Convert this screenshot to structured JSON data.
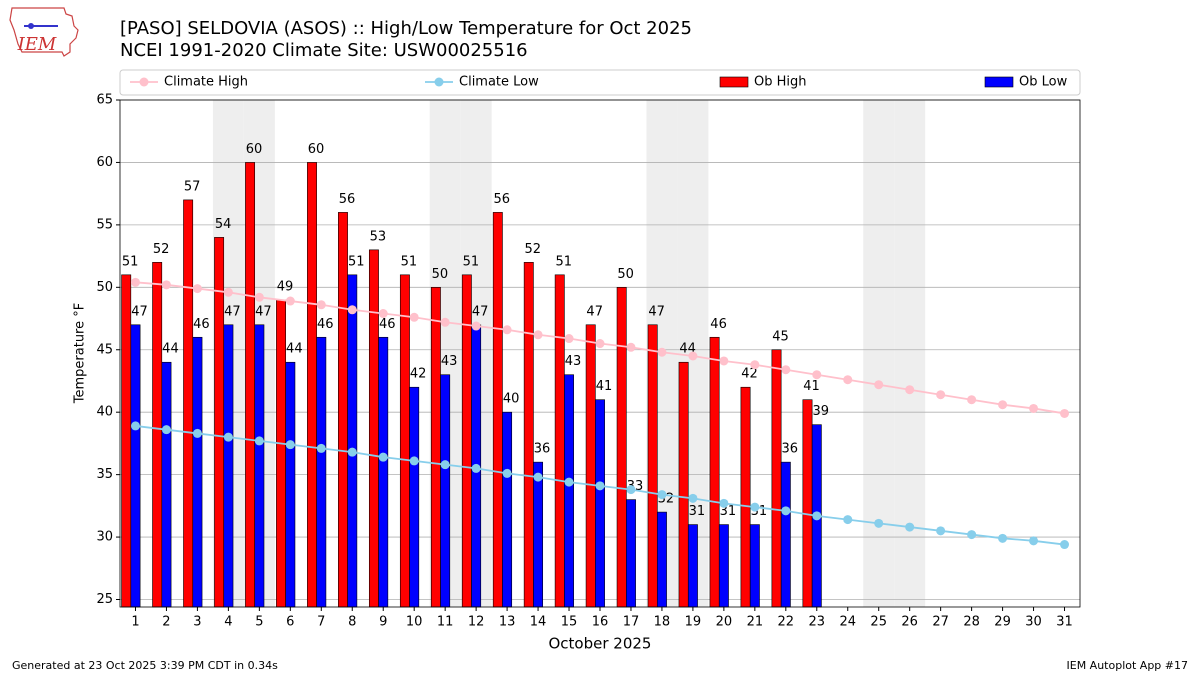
{
  "logo_text": "IEM",
  "footer_left": "Generated at 23 Oct 2025 3:39 PM CDT in 0.34s",
  "footer_right": "IEM Autoplot App #17",
  "chart_data": {
    "type": "bar",
    "title": "[PASO] SELDOVIA (ASOS) :: High/Low Temperature for Oct 2025",
    "subtitle": "NCEI 1991-2020 Climate Site: USW00025516",
    "x_label": "October 2025",
    "y_label": "Temperature °F",
    "x": [
      1,
      2,
      3,
      4,
      5,
      6,
      7,
      8,
      9,
      10,
      11,
      12,
      13,
      14,
      15,
      16,
      17,
      18,
      19,
      20,
      21,
      22,
      23,
      24,
      25,
      26,
      27,
      28,
      29,
      30,
      31
    ],
    "xlim": [
      0.5,
      31.5
    ],
    "xticks": [
      1,
      2,
      3,
      4,
      5,
      6,
      7,
      8,
      9,
      10,
      11,
      12,
      13,
      14,
      15,
      16,
      17,
      18,
      19,
      20,
      21,
      22,
      23,
      24,
      25,
      26,
      27,
      28,
      29,
      30,
      31
    ],
    "ylim": [
      24.4,
      65
    ],
    "yticks": [
      25,
      30,
      35,
      40,
      45,
      50,
      55,
      60,
      65
    ],
    "grid": true,
    "legend": "top",
    "shaded": [
      4,
      5,
      11,
      12,
      18,
      19,
      25,
      26
    ],
    "shade_color": "#eeeeee",
    "series": [
      {
        "name": "Climate High",
        "kind": "line",
        "color": "pink",
        "values": [
          50.4,
          50.2,
          49.9,
          49.6,
          49.2,
          48.9,
          48.6,
          48.2,
          47.9,
          47.6,
          47.2,
          46.9,
          46.6,
          46.2,
          45.9,
          45.5,
          45.2,
          44.8,
          44.5,
          44.1,
          43.8,
          43.4,
          43.0,
          42.6,
          42.2,
          41.8,
          41.4,
          41.0,
          40.6,
          40.3,
          39.9
        ]
      },
      {
        "name": "Climate Low",
        "kind": "line",
        "color": "skyblue",
        "values": [
          38.9,
          38.6,
          38.3,
          38.0,
          37.7,
          37.4,
          37.1,
          36.8,
          36.4,
          36.1,
          35.8,
          35.5,
          35.1,
          34.8,
          34.4,
          34.1,
          33.8,
          33.4,
          33.1,
          32.7,
          32.4,
          32.1,
          31.7,
          31.4,
          31.1,
          30.8,
          30.5,
          30.2,
          29.9,
          29.7,
          29.4
        ]
      },
      {
        "name": "Ob High",
        "kind": "bar",
        "color": "red",
        "values": [
          51,
          52,
          57,
          54,
          60,
          49,
          60,
          56,
          53,
          51,
          50,
          51,
          56,
          52,
          51,
          47,
          50,
          47,
          44,
          46,
          42,
          45,
          41,
          null,
          null,
          null,
          null,
          null,
          null,
          null,
          null
        ]
      },
      {
        "name": "Ob Low",
        "kind": "bar",
        "color": "blue",
        "values": [
          47,
          44,
          46,
          47,
          47,
          44,
          46,
          51,
          46,
          42,
          43,
          47,
          40,
          36,
          43,
          41,
          33,
          32,
          31,
          31,
          31,
          36,
          39,
          null,
          null,
          null,
          null,
          null,
          null,
          null,
          null
        ]
      }
    ]
  }
}
